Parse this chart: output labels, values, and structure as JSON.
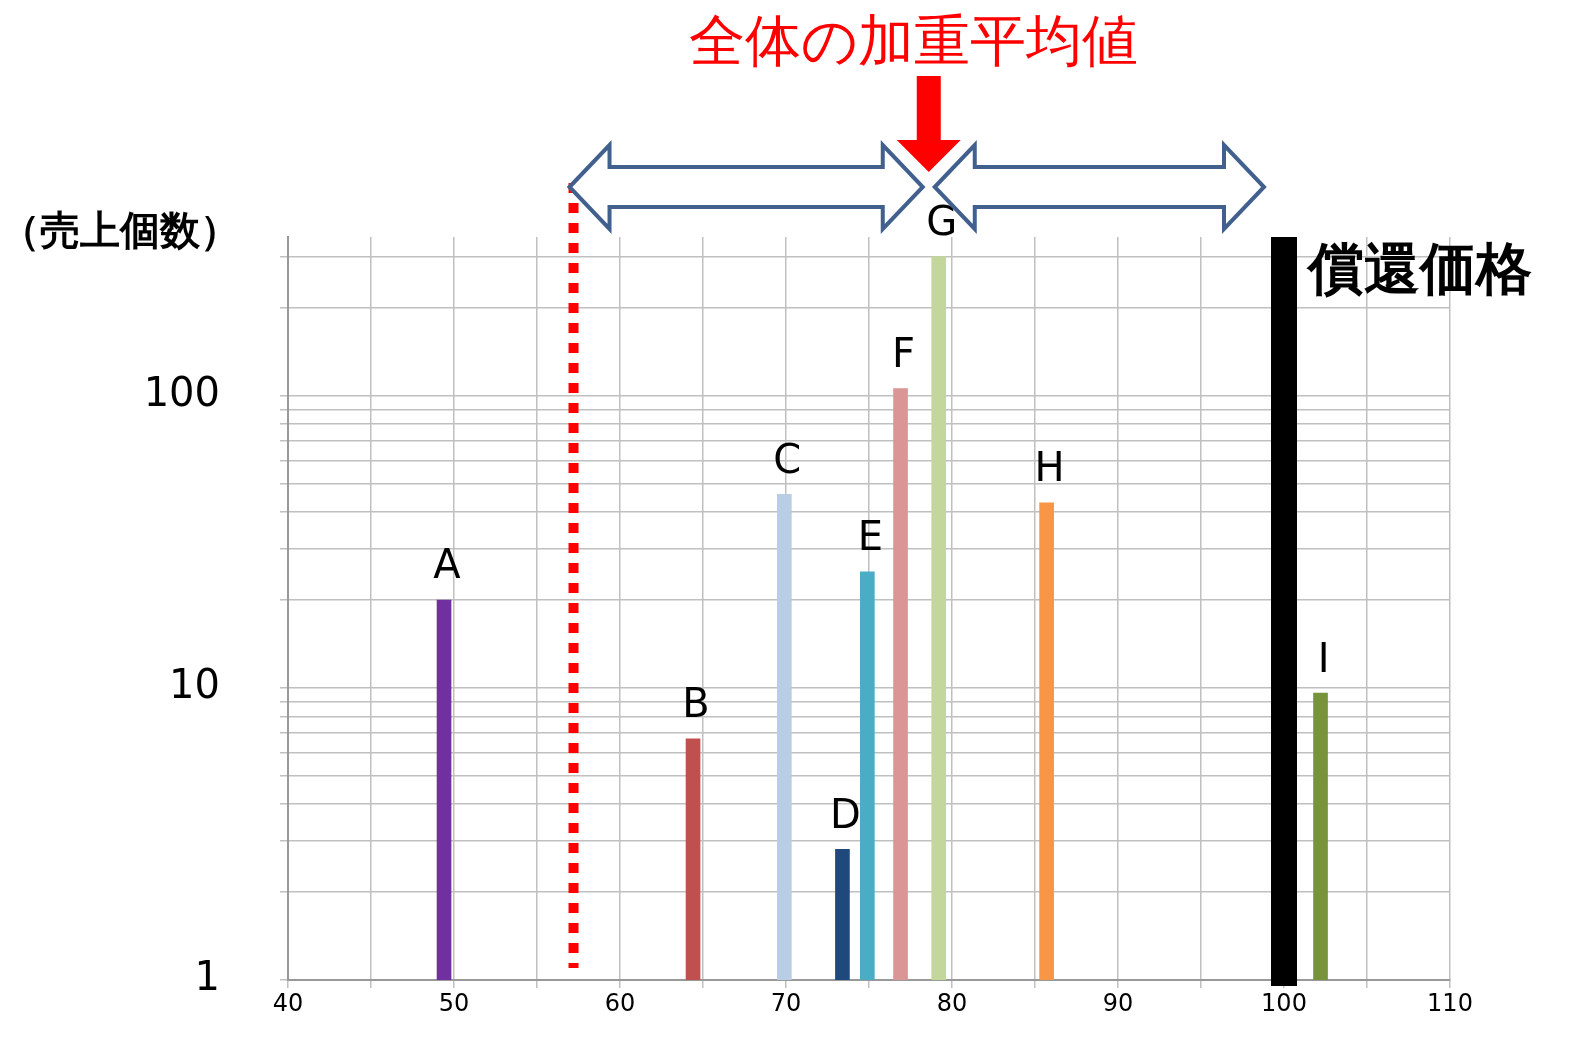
{
  "chart_data": {
    "type": "bar",
    "ylabel": "（売上個数）",
    "log": "y",
    "grid": true,
    "legend": false,
    "xlim": [
      40,
      110
    ],
    "xticks": [
      40,
      {
        "value": 45,
        "label": null
      },
      50,
      {
        "value": 55,
        "label": null
      },
      60,
      {
        "value": 65,
        "label": null
      },
      70,
      {
        "value": 75,
        "label": null
      },
      80,
      {
        "value": 85,
        "label": null
      },
      90,
      {
        "value": 95,
        "label": null
      },
      100,
      {
        "value": 105,
        "label": null
      },
      110
    ],
    "ylim": [
      1,
      350
    ],
    "yticks": [
      1,
      {
        "value": 2,
        "label": null
      },
      {
        "value": 3,
        "label": null
      },
      {
        "value": 4,
        "label": null
      },
      {
        "value": 5,
        "label": null
      },
      {
        "value": 6,
        "label": null
      },
      {
        "value": 7,
        "label": null
      },
      {
        "value": 8,
        "label": null
      },
      {
        "value": 9,
        "label": null
      },
      10,
      {
        "value": 20,
        "label": null
      },
      {
        "value": 30,
        "label": null
      },
      {
        "value": 40,
        "label": null
      },
      {
        "value": 50,
        "label": null
      },
      {
        "value": 60,
        "label": null
      },
      {
        "value": 70,
        "label": null
      },
      {
        "value": 80,
        "label": null
      },
      {
        "value": 90,
        "label": null
      },
      100,
      {
        "value": 200,
        "label": null
      },
      {
        "value": 300,
        "label": null
      }
    ],
    "series": [
      {
        "name": "A",
        "color": "#7030a0",
        "x": [
          49.4
        ],
        "values": [
          20
        ]
      },
      {
        "name": "B",
        "color": "#c0504d",
        "x": [
          64.4
        ],
        "values": [
          6.7
        ]
      },
      {
        "name": "C",
        "color": "#b9cde5",
        "x": [
          69.9
        ],
        "values": [
          46
        ]
      },
      {
        "name": "D",
        "color": "#1f497d",
        "x": [
          73.4
        ],
        "values": [
          2.8
        ]
      },
      {
        "name": "E",
        "color": "#4bacc6",
        "x": [
          74.9
        ],
        "values": [
          25
        ]
      },
      {
        "name": "F",
        "color": "#d99694",
        "x": [
          76.9
        ],
        "values": [
          106
        ]
      },
      {
        "name": "G",
        "color": "#c3d69b",
        "x": [
          79.2
        ],
        "values": [
          300
        ]
      },
      {
        "name": "H",
        "color": "#f79646",
        "x": [
          85.7
        ],
        "values": [
          43
        ]
      },
      {
        "name": "I",
        "color": "#77933c",
        "x": [
          102.2
        ],
        "values": [
          9.6
        ]
      }
    ],
    "ref_lines": [
      {
        "axis": "x",
        "value": 57.2,
        "color": "#ff0000",
        "line_style": "dotted"
      },
      {
        "axis": "x",
        "value": 100,
        "label": "償還価格",
        "color": "#000000",
        "line_style": "solid"
      }
    ],
    "annotations": [
      "全体の加重平均値"
    ]
  }
}
